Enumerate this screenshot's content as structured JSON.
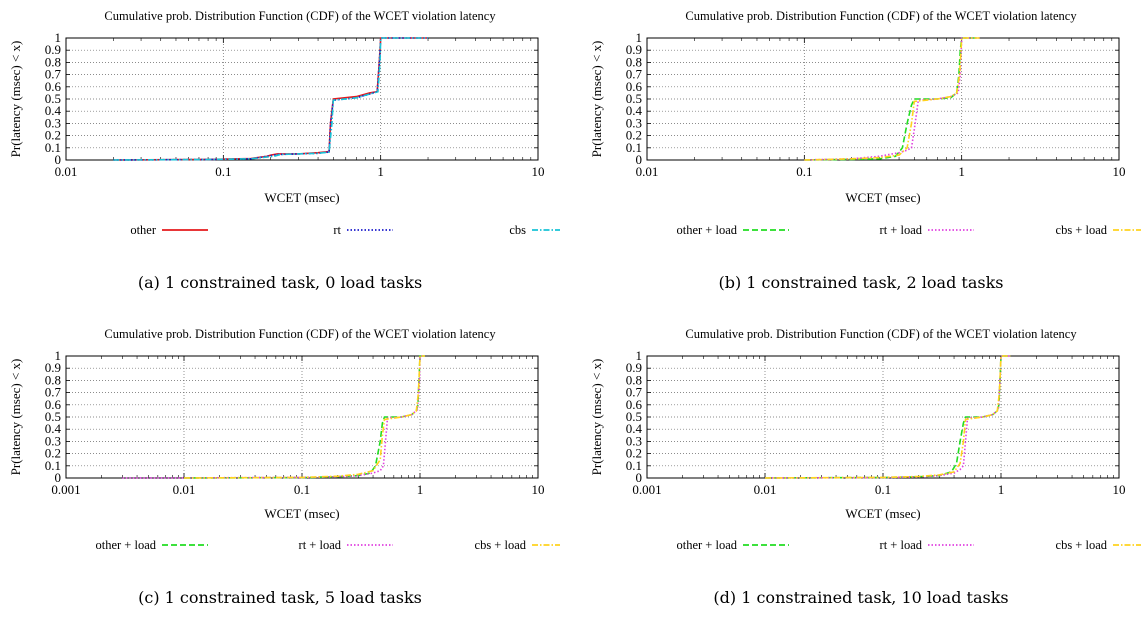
{
  "chart_data": [
    {
      "type": "line",
      "title": "Cumulative prob. Distribution Function (CDF) of the WCET violation latency",
      "xlabel": "WCET (msec)",
      "ylabel": "Pr(latency (msec) < x)",
      "xscale": "log",
      "xlim": [
        0.01,
        10
      ],
      "ylim": [
        0,
        1
      ],
      "xticks": [
        "0.01",
        "0.1",
        "1",
        "10"
      ],
      "yticks": [
        "0",
        "0.1",
        "0.2",
        "0.3",
        "0.4",
        "0.5",
        "0.6",
        "0.7",
        "0.8",
        "0.9",
        "1"
      ],
      "grid": true,
      "legend_position": "bottom",
      "caption": "(a) 1 constrained task, 0 load tasks",
      "series": [
        {
          "name": "other",
          "color": "#e41a1c",
          "dash": "solid",
          "x": [
            0.02,
            0.08,
            0.15,
            0.19,
            0.2,
            0.22,
            0.3,
            0.4,
            0.47,
            0.48,
            0.5,
            0.7,
            0.85,
            0.95,
            0.98,
            1.0,
            2.0
          ],
          "y": [
            0,
            0.005,
            0.012,
            0.03,
            0.04,
            0.05,
            0.05,
            0.06,
            0.07,
            0.3,
            0.5,
            0.52,
            0.55,
            0.56,
            0.8,
            1.0,
            1.0
          ]
        },
        {
          "name": "rt",
          "color": "#1a1acc",
          "dash": "dotted",
          "x": [
            0.02,
            0.08,
            0.15,
            0.2,
            0.22,
            0.3,
            0.4,
            0.47,
            0.48,
            0.5,
            0.7,
            0.85,
            0.95,
            0.98,
            1.0,
            2.0
          ],
          "y": [
            0,
            0.004,
            0.01,
            0.035,
            0.045,
            0.05,
            0.055,
            0.065,
            0.3,
            0.49,
            0.51,
            0.54,
            0.56,
            0.8,
            1.0,
            1.0
          ]
        },
        {
          "name": "cbs",
          "color": "#17c3d6",
          "dash": "dashdot",
          "x": [
            0.02,
            0.08,
            0.15,
            0.21,
            0.23,
            0.3,
            0.4,
            0.47,
            0.49,
            0.5,
            0.7,
            0.85,
            0.96,
            0.99,
            1.0,
            2.0
          ],
          "y": [
            0,
            0.004,
            0.01,
            0.03,
            0.045,
            0.05,
            0.055,
            0.065,
            0.3,
            0.49,
            0.51,
            0.54,
            0.56,
            0.8,
            1.0,
            1.0
          ]
        }
      ]
    },
    {
      "type": "line",
      "title": "Cumulative prob. Distribution Function (CDF) of the WCET violation latency",
      "xlabel": "WCET (msec)",
      "ylabel": "Pr(latency (msec) < x)",
      "xscale": "log",
      "xlim": [
        0.01,
        10
      ],
      "ylim": [
        0,
        1
      ],
      "xticks": [
        "0.01",
        "0.1",
        "1",
        "10"
      ],
      "yticks": [
        "0",
        "0.1",
        "0.2",
        "0.3",
        "0.4",
        "0.5",
        "0.6",
        "0.7",
        "0.8",
        "0.9",
        "1"
      ],
      "grid": true,
      "legend_position": "bottom",
      "caption": "(b) 1 constrained task, 2 load tasks",
      "series": [
        {
          "name": "other + load",
          "color": "#22dd22",
          "dash": "dashed",
          "x": [
            0.1,
            0.2,
            0.3,
            0.38,
            0.42,
            0.45,
            0.48,
            0.5,
            0.7,
            0.85,
            0.93,
            0.96,
            0.98,
            1.0,
            1.3
          ],
          "y": [
            0,
            0.005,
            0.01,
            0.03,
            0.1,
            0.3,
            0.45,
            0.5,
            0.5,
            0.51,
            0.55,
            0.7,
            0.9,
            1.0,
            1.0
          ]
        },
        {
          "name": "rt + load",
          "color": "#e040e0",
          "dash": "dotted",
          "x": [
            0.1,
            0.2,
            0.3,
            0.4,
            0.45,
            0.48,
            0.5,
            0.53,
            0.7,
            0.85,
            0.95,
            0.98,
            1.0,
            1.3
          ],
          "y": [
            0,
            0.01,
            0.03,
            0.06,
            0.08,
            0.1,
            0.25,
            0.49,
            0.5,
            0.52,
            0.55,
            0.7,
            1.0,
            1.0
          ]
        },
        {
          "name": "cbs + load",
          "color": "#ffd21f",
          "dash": "dashdot",
          "x": [
            0.1,
            0.2,
            0.3,
            0.4,
            0.45,
            0.48,
            0.5,
            0.7,
            0.85,
            0.93,
            0.97,
            1.0,
            1.3
          ],
          "y": [
            0,
            0.01,
            0.02,
            0.04,
            0.1,
            0.3,
            0.48,
            0.5,
            0.52,
            0.55,
            0.7,
            1.0,
            1.0
          ]
        }
      ]
    },
    {
      "type": "line",
      "title": "Cumulative prob. Distribution Function (CDF) of the WCET violation latency",
      "xlabel": "WCET (msec)",
      "ylabel": "Pr(latency (msec) < x)",
      "xscale": "log",
      "xlim": [
        0.001,
        10
      ],
      "ylim": [
        0,
        1
      ],
      "xticks": [
        "0.001",
        "0.01",
        "0.1",
        "1",
        "10"
      ],
      "yticks": [
        "0",
        "0.1",
        "0.2",
        "0.3",
        "0.4",
        "0.5",
        "0.6",
        "0.7",
        "0.8",
        "0.9",
        "1"
      ],
      "grid": true,
      "legend_position": "bottom",
      "caption": "(c) 1 constrained task, 5 load tasks",
      "series": [
        {
          "name": "other + load",
          "color": "#22dd22",
          "dash": "dashed",
          "x": [
            0.01,
            0.1,
            0.2,
            0.3,
            0.38,
            0.42,
            0.46,
            0.48,
            0.5,
            0.7,
            0.85,
            0.93,
            0.96,
            0.98,
            1.0,
            1.1
          ],
          "y": [
            0,
            0.003,
            0.01,
            0.02,
            0.04,
            0.1,
            0.3,
            0.45,
            0.5,
            0.5,
            0.52,
            0.55,
            0.6,
            0.8,
            1.0,
            1.0
          ]
        },
        {
          "name": "rt + load",
          "color": "#e040e0",
          "dash": "dotted",
          "x": [
            0.003,
            0.01,
            0.1,
            0.2,
            0.3,
            0.4,
            0.46,
            0.49,
            0.51,
            0.53,
            0.7,
            0.85,
            0.95,
            0.99,
            1.0,
            1.1
          ],
          "y": [
            0,
            0.001,
            0.005,
            0.01,
            0.02,
            0.04,
            0.06,
            0.1,
            0.3,
            0.49,
            0.5,
            0.52,
            0.56,
            0.8,
            1.0,
            1.0
          ]
        },
        {
          "name": "cbs + load",
          "color": "#ffd21f",
          "dash": "dashdot",
          "x": [
            0.01,
            0.1,
            0.2,
            0.3,
            0.4,
            0.46,
            0.48,
            0.5,
            0.7,
            0.85,
            0.93,
            0.97,
            1.0,
            1.1
          ],
          "y": [
            0,
            0.005,
            0.015,
            0.03,
            0.06,
            0.15,
            0.35,
            0.48,
            0.5,
            0.52,
            0.55,
            0.7,
            1.0,
            1.0
          ]
        }
      ]
    },
    {
      "type": "line",
      "title": "Cumulative prob. Distribution Function (CDF) of the WCET violation latency",
      "xlabel": "WCET (msec)",
      "ylabel": "Pr(latency (msec) < x)",
      "xscale": "log",
      "xlim": [
        0.001,
        10
      ],
      "ylim": [
        0,
        1
      ],
      "xticks": [
        "0.001",
        "0.01",
        "0.1",
        "1",
        "10"
      ],
      "yticks": [
        "0",
        "0.1",
        "0.2",
        "0.3",
        "0.4",
        "0.5",
        "0.6",
        "0.7",
        "0.8",
        "0.9",
        "1"
      ],
      "grid": true,
      "legend_position": "bottom",
      "caption": "(d) 1 constrained task, 10 load tasks",
      "series": [
        {
          "name": "other + load",
          "color": "#22dd22",
          "dash": "dashed",
          "x": [
            0.01,
            0.1,
            0.2,
            0.3,
            0.38,
            0.42,
            0.45,
            0.48,
            0.5,
            0.7,
            0.85,
            0.93,
            0.96,
            0.98,
            1.0,
            1.2
          ],
          "y": [
            0,
            0.004,
            0.01,
            0.02,
            0.05,
            0.12,
            0.3,
            0.45,
            0.5,
            0.5,
            0.52,
            0.55,
            0.6,
            0.8,
            1.0,
            1.0
          ]
        },
        {
          "name": "rt + load",
          "color": "#e040e0",
          "dash": "dotted",
          "x": [
            0.01,
            0.1,
            0.2,
            0.3,
            0.4,
            0.45,
            0.48,
            0.5,
            0.52,
            0.7,
            0.85,
            0.95,
            0.98,
            1.0,
            1.2
          ],
          "y": [
            0,
            0.003,
            0.008,
            0.02,
            0.04,
            0.07,
            0.1,
            0.3,
            0.49,
            0.5,
            0.52,
            0.56,
            0.8,
            1.0,
            1.0
          ]
        },
        {
          "name": "cbs + load",
          "color": "#ffd21f",
          "dash": "dashdot",
          "x": [
            0.01,
            0.1,
            0.2,
            0.3,
            0.4,
            0.45,
            0.48,
            0.5,
            0.7,
            0.85,
            0.93,
            0.97,
            1.0,
            1.2
          ],
          "y": [
            0,
            0.005,
            0.012,
            0.025,
            0.05,
            0.12,
            0.3,
            0.48,
            0.5,
            0.52,
            0.55,
            0.7,
            1.0,
            1.0
          ]
        }
      ]
    }
  ]
}
